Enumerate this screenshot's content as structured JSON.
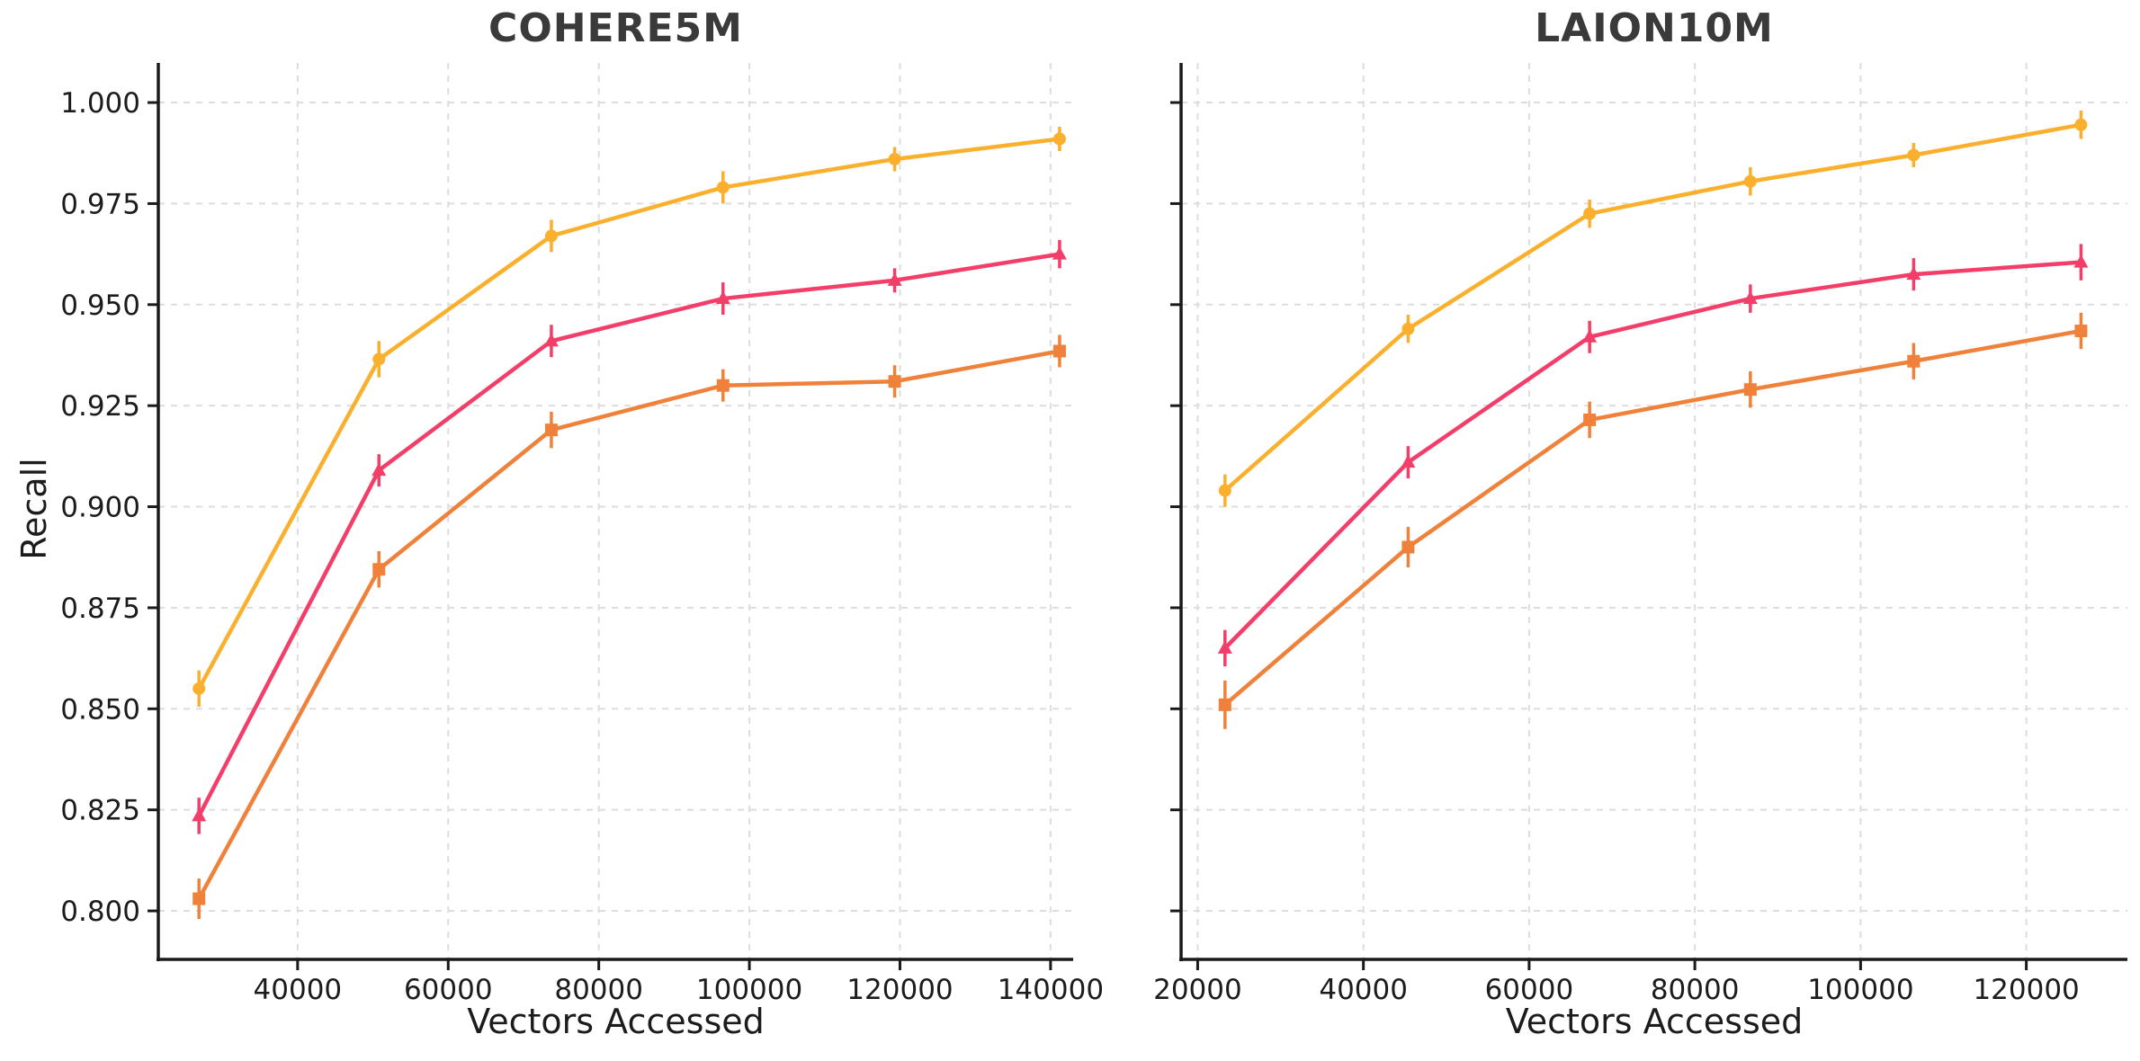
{
  "figure": {
    "background": "#ffffff",
    "text_color": "#1c1c1c",
    "title_color": "#3a3a3a",
    "grid_color": "#dddddd",
    "spine_color": "#1a1a1a"
  },
  "chart_data": [
    {
      "type": "line",
      "title": "COHERE5M",
      "xlabel": "Vectors Accessed",
      "ylabel": "Recall",
      "xlim": [
        21500,
        143000
      ],
      "ylim": [
        0.788,
        1.0098
      ],
      "grid": true,
      "legend": "none",
      "xtick_values": [
        40000,
        60000,
        80000,
        100000,
        120000,
        140000
      ],
      "xtick_labels": [
        "40000",
        "60000",
        "80000",
        "100000",
        "120000",
        "140000"
      ],
      "ytick_values": [
        0.8,
        0.825,
        0.85,
        0.875,
        0.9,
        0.925,
        0.95,
        0.975,
        1.0
      ],
      "ytick_labels": [
        "0.800",
        "0.825",
        "0.850",
        "0.875",
        "0.900",
        "0.925",
        "0.950",
        "0.975",
        "1.000"
      ],
      "show_ytick_labels": true,
      "series": [
        {
          "name": "amber-circle",
          "marker": "circle",
          "color": "#FBB02D",
          "x": [
            26900,
            50800,
            73700,
            96500,
            119300,
            141200
          ],
          "y": [
            0.855,
            0.9365,
            0.967,
            0.979,
            0.986,
            0.991
          ],
          "yerr": [
            0.0045,
            0.0045,
            0.004,
            0.004,
            0.003,
            0.003
          ]
        },
        {
          "name": "pink-triangle",
          "marker": "triangle",
          "color": "#F23E69",
          "x": [
            26900,
            50800,
            73700,
            96500,
            119300,
            141200
          ],
          "y": [
            0.8235,
            0.909,
            0.941,
            0.9515,
            0.956,
            0.9625
          ],
          "yerr": [
            0.0045,
            0.004,
            0.004,
            0.004,
            0.003,
            0.0035
          ]
        },
        {
          "name": "orange-square",
          "marker": "square",
          "color": "#F0813A",
          "x": [
            26900,
            50800,
            73700,
            96500,
            119300,
            141200
          ],
          "y": [
            0.803,
            0.8845,
            0.919,
            0.93,
            0.931,
            0.9385
          ],
          "yerr": [
            0.005,
            0.0045,
            0.0045,
            0.004,
            0.004,
            0.004
          ]
        }
      ]
    },
    {
      "type": "line",
      "title": "LAION10M",
      "xlabel": "Vectors Accessed",
      "ylabel": "",
      "xlim": [
        18000,
        132200
      ],
      "ylim": [
        0.788,
        1.0098
      ],
      "grid": true,
      "legend": "none",
      "xtick_values": [
        20000,
        40000,
        60000,
        80000,
        100000,
        120000
      ],
      "xtick_labels": [
        "20000",
        "40000",
        "60000",
        "80000",
        "100000",
        "120000"
      ],
      "ytick_values": [
        0.8,
        0.825,
        0.85,
        0.875,
        0.9,
        0.925,
        0.95,
        0.975,
        1.0
      ],
      "ytick_labels": [
        "0.800",
        "0.825",
        "0.850",
        "0.875",
        "0.900",
        "0.925",
        "0.950",
        "0.975",
        "1.000"
      ],
      "show_ytick_labels": false,
      "series": [
        {
          "name": "amber-circle",
          "marker": "circle",
          "color": "#FBB02D",
          "x": [
            23300,
            45400,
            67300,
            86700,
            106400,
            126600
          ],
          "y": [
            0.904,
            0.944,
            0.9725,
            0.9805,
            0.987,
            0.9945
          ],
          "yerr": [
            0.004,
            0.0035,
            0.0035,
            0.0035,
            0.003,
            0.0035
          ]
        },
        {
          "name": "pink-triangle",
          "marker": "triangle",
          "color": "#F23E69",
          "x": [
            23300,
            45400,
            67300,
            86700,
            106400,
            126600
          ],
          "y": [
            0.865,
            0.911,
            0.942,
            0.9515,
            0.9575,
            0.9605
          ],
          "yerr": [
            0.0045,
            0.004,
            0.004,
            0.0035,
            0.004,
            0.0045
          ]
        },
        {
          "name": "orange-square",
          "marker": "square",
          "color": "#F0813A",
          "x": [
            23300,
            45400,
            67300,
            86700,
            106400,
            126600
          ],
          "y": [
            0.851,
            0.89,
            0.9215,
            0.929,
            0.936,
            0.9435
          ],
          "yerr": [
            0.006,
            0.005,
            0.0045,
            0.0045,
            0.0045,
            0.0045
          ]
        }
      ]
    }
  ]
}
